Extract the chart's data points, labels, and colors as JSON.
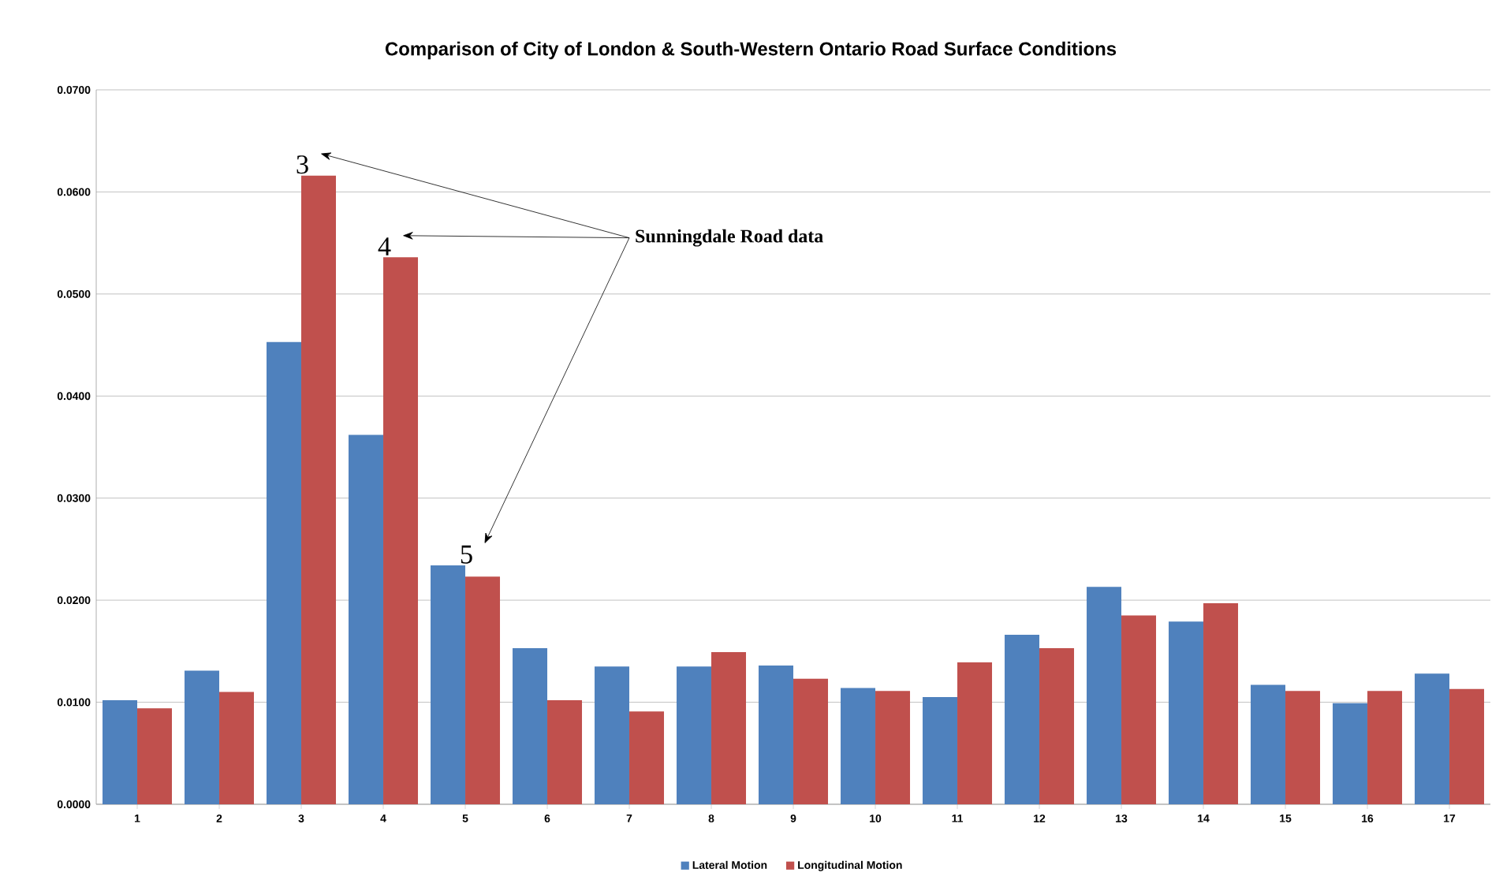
{
  "chart_data": {
    "type": "bar",
    "title": "Comparison of City of London & South-Western Ontario Road Surface Conditions",
    "categories": [
      "1",
      "2",
      "3",
      "4",
      "5",
      "6",
      "7",
      "8",
      "9",
      "10",
      "11",
      "12",
      "13",
      "14",
      "15",
      "16",
      "17"
    ],
    "series": [
      {
        "name": "Lateral Motion",
        "color": "#4f81bd",
        "values": [
          0.0102,
          0.0131,
          0.0453,
          0.0362,
          0.0234,
          0.0153,
          0.0135,
          0.0135,
          0.0136,
          0.0114,
          0.0105,
          0.0166,
          0.0213,
          0.0179,
          0.0117,
          0.0099,
          0.0128
        ]
      },
      {
        "name": "Longitudinal Motion",
        "color": "#c0504d",
        "values": [
          0.0094,
          0.011,
          0.0616,
          0.0536,
          0.0223,
          0.0102,
          0.0091,
          0.0149,
          0.0123,
          0.0111,
          0.0139,
          0.0153,
          0.0185,
          0.0197,
          0.0111,
          0.0111,
          0.0113
        ]
      }
    ],
    "ylim": [
      0,
      0.07
    ],
    "yticks": [
      {
        "value": 0,
        "label": "0.0000"
      },
      {
        "value": 0.01,
        "label": "0.0100"
      },
      {
        "value": 0.02,
        "label": "0.0200"
      },
      {
        "value": 0.03,
        "label": "0.0300"
      },
      {
        "value": 0.04,
        "label": "0.0400"
      },
      {
        "value": 0.05,
        "label": "0.0500"
      },
      {
        "value": 0.06,
        "label": "0.0600"
      },
      {
        "value": 0.07,
        "label": "0.0700"
      }
    ],
    "grid": "y",
    "legend": "bottom",
    "annotations": [
      "Sunningdale Road data",
      {
        "text": "3",
        "x": "3",
        "y": 0.0616
      },
      {
        "text": "4",
        "x": "4",
        "y": 0.0536
      },
      {
        "text": "5",
        "x": "5",
        "y": 0.0234
      }
    ]
  }
}
